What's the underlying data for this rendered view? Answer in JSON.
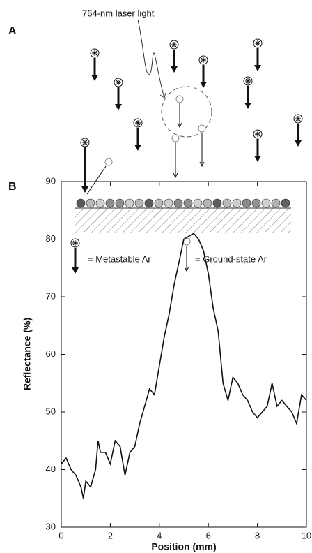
{
  "panel_a": {
    "label": "A",
    "laser_label": "764-nm laser light",
    "legend": [
      "= Metastable Ar",
      "= Ground-state Ar"
    ]
  },
  "chart_data": {
    "type": "line",
    "panel_label": "B",
    "x_label": "Position (mm)",
    "y_label": "Reflectance (%)",
    "x": [
      0,
      0.2,
      0.4,
      0.6,
      0.8,
      0.9,
      1.0,
      1.2,
      1.4,
      1.5,
      1.6,
      1.8,
      2.0,
      2.2,
      2.4,
      2.6,
      2.8,
      3.0,
      3.2,
      3.4,
      3.6,
      3.8,
      4.0,
      4.2,
      4.4,
      4.6,
      4.8,
      5.0,
      5.2,
      5.4,
      5.6,
      5.8,
      6.0,
      6.2,
      6.4,
      6.6,
      6.8,
      7.0,
      7.2,
      7.4,
      7.6,
      7.8,
      8.0,
      8.2,
      8.4,
      8.6,
      8.8,
      9.0,
      9.2,
      9.4,
      9.6,
      9.8,
      10
    ],
    "series": [
      {
        "color": "#111111",
        "values": [
          41,
          42,
          40,
          39,
          37,
          35,
          38,
          37,
          40,
          45,
          43,
          43,
          41,
          45,
          44,
          39,
          43,
          44,
          48,
          51,
          54,
          53,
          58,
          63,
          67,
          72,
          76,
          80,
          80.5,
          81,
          80,
          78,
          74,
          68,
          64,
          55,
          52,
          56,
          55,
          53,
          52,
          50,
          49,
          50,
          51,
          55,
          51,
          52,
          51,
          50,
          48,
          53,
          52
        ]
      }
    ],
    "xlim": [
      0,
      10
    ],
    "ylim": [
      30,
      90
    ],
    "xticks": [
      0,
      2,
      4,
      6,
      8,
      10
    ],
    "yticks": [
      30,
      40,
      50,
      60,
      70,
      80,
      90
    ]
  }
}
